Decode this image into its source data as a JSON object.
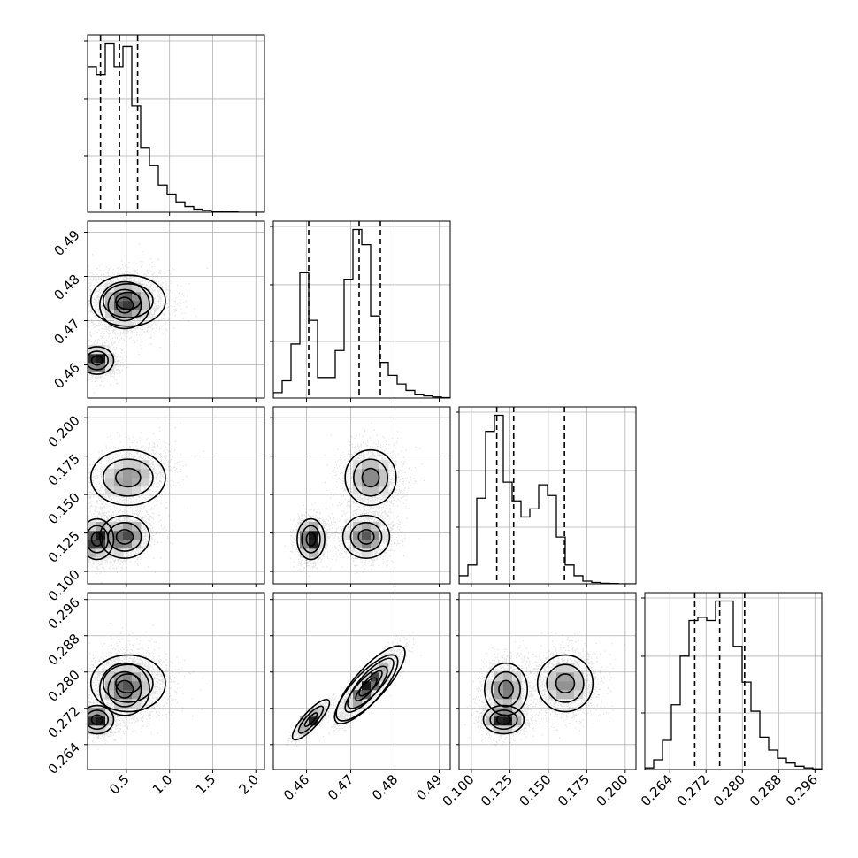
{
  "chart_data": {
    "type": "corner",
    "grid": true,
    "parameters": [
      {
        "key": "p0",
        "range": [
          0.05,
          2.1
        ],
        "ticks": [
          0.5,
          1.0,
          1.5,
          2.0
        ],
        "tick_labels": [
          "0.5",
          "1.0",
          "1.5",
          "2.0"
        ],
        "quantiles": [
          0.2,
          0.42,
          0.63
        ],
        "hist": [
          5.6,
          5.3,
          6.5,
          5.6,
          6.4,
          4.1,
          2.5,
          1.8,
          1.05,
          0.7,
          0.4,
          0.22,
          0.12,
          0.07,
          0.04,
          0.02,
          0.01,
          0,
          0,
          0
        ]
      },
      {
        "key": "p1",
        "range": [
          0.4525,
          0.4925
        ],
        "ticks": [
          0.46,
          0.47,
          0.48,
          0.49
        ],
        "tick_labels": [
          "0.46",
          "0.47",
          "0.48",
          "0.49"
        ],
        "quantiles": [
          0.4605,
          0.4719,
          0.4767
        ],
        "hist": [
          0.25,
          0.8,
          2.5,
          5.8,
          3.6,
          0.95,
          0.95,
          2.2,
          5.5,
          7.8,
          7.1,
          3.8,
          1.65,
          1.05,
          0.65,
          0.35,
          0.18,
          0.1,
          0.05,
          0.02
        ]
      },
      {
        "key": "p2",
        "range": [
          0.092,
          0.207
        ],
        "ticks": [
          0.1,
          0.125,
          0.15,
          0.175,
          0.2
        ],
        "tick_labels": [
          "0.100",
          "0.125",
          "0.150",
          "0.175",
          "0.200"
        ],
        "quantiles": [
          0.1165,
          0.1275,
          0.1605
        ],
        "hist": [
          0.3,
          0.7,
          3.2,
          5.7,
          6.3,
          3.8,
          3.1,
          2.5,
          2.8,
          3.7,
          3.3,
          1.75,
          0.7,
          0.3,
          0.1,
          0.05,
          0.02,
          0.01,
          0,
          0
        ]
      },
      {
        "key": "p3",
        "range": [
          0.2585,
          0.2975
        ],
        "ticks": [
          0.264,
          0.272,
          0.28,
          0.288,
          0.296
        ],
        "tick_labels": [
          "0.264",
          "0.272",
          "0.280",
          "0.288",
          "0.296"
        ],
        "quantiles": [
          0.2695,
          0.275,
          0.2805
        ],
        "hist": [
          0.05,
          0.3,
          0.9,
          2.0,
          3.5,
          4.6,
          4.7,
          4.6,
          5.2,
          5.2,
          3.8,
          2.7,
          1.8,
          1.0,
          0.6,
          0.35,
          0.2,
          0.1,
          0.05,
          0.02
        ]
      }
    ],
    "modes": [
      {
        "weight": 0.3,
        "mean": [
          0.16,
          0.461,
          0.121,
          0.2695
        ],
        "sd": [
          0.08,
          0.0013,
          0.0055,
          0.0013
        ]
      },
      {
        "weight": 0.33,
        "mean": [
          0.48,
          0.4735,
          0.1225,
          0.2762
        ],
        "sd": [
          0.12,
          0.0022,
          0.0058,
          0.0024
        ]
      },
      {
        "weight": 0.37,
        "mean": [
          0.52,
          0.4745,
          0.161,
          0.2775
        ],
        "sd": [
          0.18,
          0.0024,
          0.0075,
          0.0026
        ]
      }
    ]
  }
}
